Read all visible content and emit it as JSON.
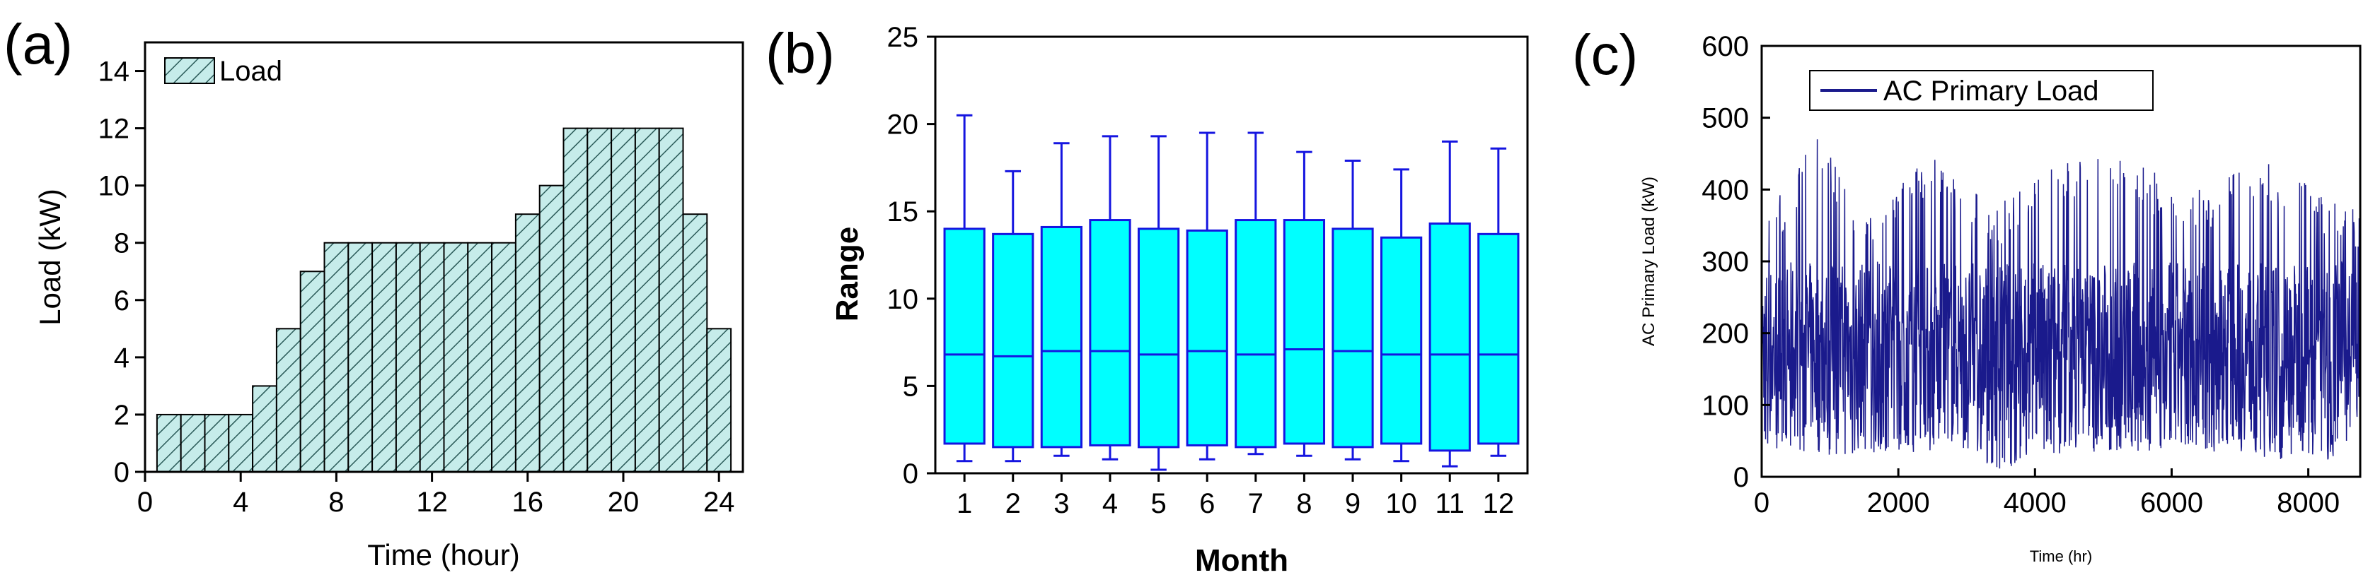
{
  "chart_data": [
    {
      "panel": "(a)",
      "type": "bar",
      "xlabel": "Time (hour)",
      "ylabel": "Load (kW)",
      "xlim": [
        0,
        25
      ],
      "ylim": [
        0,
        15
      ],
      "xticks": [
        "0",
        "4",
        "8",
        "12",
        "16",
        "20",
        "24"
      ],
      "yticks": [
        "0",
        "2",
        "4",
        "6",
        "8",
        "10",
        "12",
        "14"
      ],
      "legend": "Load",
      "legend_position": "top-left",
      "x": [
        1,
        2,
        3,
        4,
        5,
        6,
        7,
        8,
        9,
        10,
        11,
        12,
        13,
        14,
        15,
        16,
        17,
        18,
        19,
        20,
        21,
        22,
        23,
        24
      ],
      "values": [
        2,
        2,
        2,
        2,
        3,
        5,
        7,
        8,
        8,
        8,
        8,
        8,
        8,
        8,
        8,
        9,
        10,
        12,
        12,
        12,
        12,
        12,
        9,
        5
      ],
      "fill": "#c6ecea",
      "hatch": "#2a5a58"
    },
    {
      "panel": "(b)",
      "type": "box",
      "xlabel": "Month",
      "ylabel": "Range",
      "ylim": [
        0,
        25
      ],
      "yticks": [
        "0",
        "5",
        "10",
        "15",
        "20",
        "25"
      ],
      "categories": [
        "1",
        "2",
        "3",
        "4",
        "5",
        "6",
        "7",
        "8",
        "9",
        "10",
        "11",
        "12"
      ],
      "boxes": [
        {
          "min": 0.7,
          "q1": 1.7,
          "median": 6.8,
          "q3": 14.0,
          "max": 20.5
        },
        {
          "min": 0.7,
          "q1": 1.5,
          "median": 6.7,
          "q3": 13.7,
          "max": 17.3
        },
        {
          "min": 1.0,
          "q1": 1.5,
          "median": 7.0,
          "q3": 14.1,
          "max": 18.9
        },
        {
          "min": 0.8,
          "q1": 1.6,
          "median": 7.0,
          "q3": 14.5,
          "max": 19.3
        },
        {
          "min": 0.2,
          "q1": 1.5,
          "median": 6.8,
          "q3": 14.0,
          "max": 19.3
        },
        {
          "min": 0.8,
          "q1": 1.6,
          "median": 7.0,
          "q3": 13.9,
          "max": 19.5
        },
        {
          "min": 1.1,
          "q1": 1.5,
          "median": 6.8,
          "q3": 14.5,
          "max": 19.5
        },
        {
          "min": 1.0,
          "q1": 1.7,
          "median": 7.1,
          "q3": 14.5,
          "max": 18.4
        },
        {
          "min": 0.8,
          "q1": 1.5,
          "median": 7.0,
          "q3": 14.0,
          "max": 17.9
        },
        {
          "min": 0.7,
          "q1": 1.7,
          "median": 6.8,
          "q3": 13.5,
          "max": 17.4
        },
        {
          "min": 0.4,
          "q1": 1.3,
          "median": 6.8,
          "q3": 14.3,
          "max": 19.0
        },
        {
          "min": 1.0,
          "q1": 1.7,
          "median": 6.8,
          "q3": 13.7,
          "max": 18.6
        }
      ],
      "box_color": "#00ffff",
      "line_color": "#1515e0"
    },
    {
      "panel": "(c)",
      "type": "line",
      "xlabel": "Time (hr)",
      "ylabel": "AC Primary Load (kW)",
      "xlim": [
        0,
        8760
      ],
      "ylim": [
        0,
        600
      ],
      "xticks": [
        "0",
        "2000",
        "4000",
        "6000",
        "8000"
      ],
      "yticks": [
        "0",
        "100",
        "200",
        "300",
        "400",
        "500",
        "600"
      ],
      "series": [
        {
          "name": "AC Primary Load",
          "color": "#1a1a8c",
          "lower_envelope": [
            [
              0,
              40
            ],
            [
              1000,
              30
            ],
            [
              2000,
              35
            ],
            [
              3000,
              30
            ],
            [
              3450,
              5
            ],
            [
              4000,
              30
            ],
            [
              5000,
              35
            ],
            [
              6000,
              30
            ],
            [
              7000,
              35
            ],
            [
              7900,
              15
            ],
            [
              8760,
              35
            ]
          ],
          "upper_envelope": [
            [
              0,
              360
            ],
            [
              500,
              420
            ],
            [
              800,
              480
            ],
            [
              1500,
              370
            ],
            [
              2500,
              450
            ],
            [
              3000,
              410
            ],
            [
              3500,
              380
            ],
            [
              4200,
              440
            ],
            [
              5000,
              455
            ],
            [
              5600,
              430
            ],
            [
              6500,
              400
            ],
            [
              7300,
              445
            ],
            [
              8000,
              410
            ],
            [
              8760,
              370
            ]
          ],
          "typical_range": [
            50,
            300
          ]
        }
      ],
      "legend_position": "top-left"
    }
  ]
}
